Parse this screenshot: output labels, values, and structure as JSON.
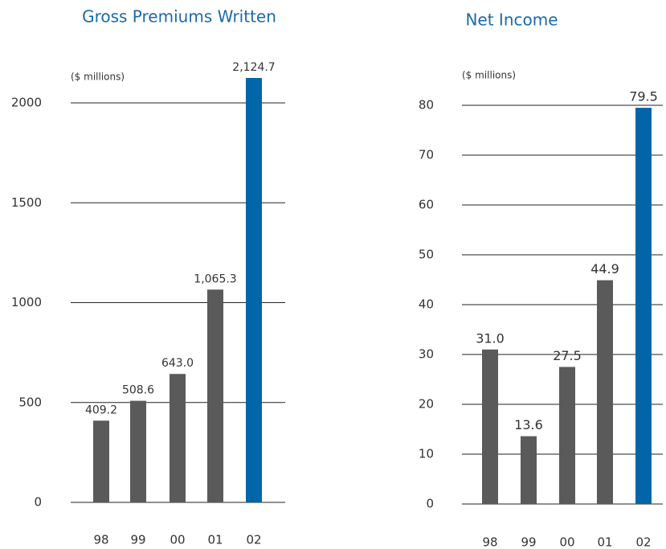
{
  "chart_data": [
    {
      "type": "bar",
      "title": "Gross Premiums Written",
      "unit_label": "($ millions)",
      "categories": [
        "98",
        "99",
        "00",
        "01",
        "02"
      ],
      "values": [
        409.2,
        508.6,
        643.0,
        1065.3,
        2124.7
      ],
      "value_labels": [
        "409.2",
        "508.6",
        "643.0",
        "1,065.3",
        "2,124.7"
      ],
      "colors": [
        "#5a5a5a",
        "#5a5a5a",
        "#5a5a5a",
        "#5a5a5a",
        "#0066a8"
      ],
      "ylim": [
        0,
        2000
      ],
      "yticks": [
        0,
        500,
        1000,
        1500,
        2000
      ],
      "grid": true
    },
    {
      "type": "bar",
      "title": "Net Income",
      "unit_label": "($ millions)",
      "categories": [
        "98",
        "99",
        "00",
        "01",
        "02"
      ],
      "values": [
        31.0,
        13.6,
        27.5,
        44.9,
        79.5
      ],
      "value_labels": [
        "31.0",
        "13.6",
        "27.5",
        "44.9",
        "79.5"
      ],
      "colors": [
        "#5a5a5a",
        "#5a5a5a",
        "#5a5a5a",
        "#5a5a5a",
        "#0066a8"
      ],
      "ylim": [
        0,
        80
      ],
      "yticks": [
        0,
        10,
        20,
        30,
        40,
        50,
        60,
        70,
        80
      ],
      "grid": true
    }
  ]
}
